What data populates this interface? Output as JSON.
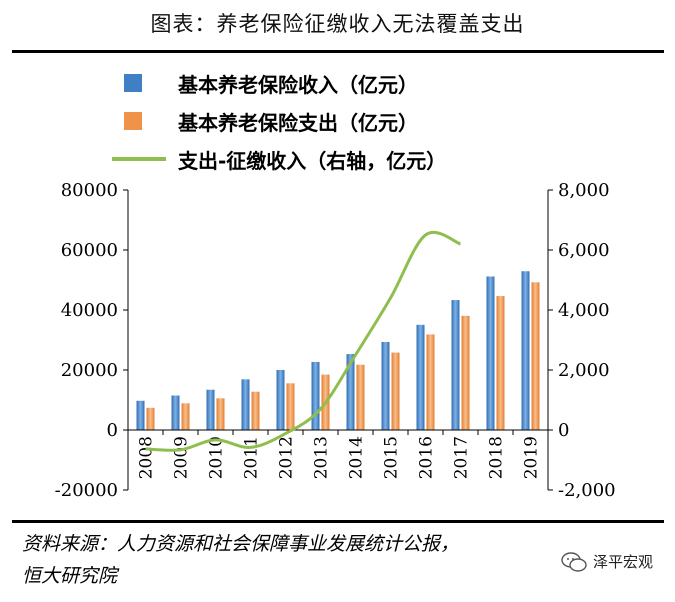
{
  "header": {
    "title": "图表：养老保险征缴收入无法覆盖支出"
  },
  "legend": {
    "income": "基本养老保险收入（亿元）",
    "expense": "基本养老保险支出（亿元）",
    "gap": "支出-征缴收入（右轴，亿元）"
  },
  "source": {
    "line1": "资料来源：人力资源和社会保障事业发展统计公报，",
    "line2": "恒大研究院"
  },
  "watermark": {
    "text": "泽平宏观"
  },
  "colors": {
    "income": "#3f7fc3",
    "expense": "#f0934a",
    "gap": "#8fbe4e"
  },
  "chart_data": {
    "type": "bar",
    "categories": [
      "2008",
      "2009",
      "2010",
      "2011",
      "2012",
      "2013",
      "2014",
      "2015",
      "2016",
      "2017",
      "2018",
      "2019"
    ],
    "series": [
      {
        "name": "基本养老保险收入（亿元）",
        "axis": "left",
        "values": [
          9740,
          11491,
          13420,
          16895,
          20001,
          22680,
          25310,
          29341,
          35058,
          43310,
          51168,
          52919
        ]
      },
      {
        "name": "基本养老保险支出（亿元）",
        "axis": "left",
        "values": [
          7390,
          8894,
          10555,
          12765,
          15562,
          18470,
          21755,
          25813,
          31854,
          38052,
          44645,
          49228
        ]
      },
      {
        "name": "支出-征缴收入（右轴，亿元）",
        "axis": "right",
        "type": "line",
        "x": [
          "2008",
          "2009",
          "2010",
          "2011",
          "2012",
          "2013",
          "2014",
          "2015",
          "2016",
          "2017"
        ],
        "values": [
          -630,
          -660,
          -330,
          -580,
          -120,
          700,
          2500,
          4400,
          6500,
          6200
        ]
      }
    ],
    "left_axis": {
      "ylim": [
        -20000,
        80000
      ],
      "ticks": [
        "-20000",
        "0",
        "20000",
        "40000",
        "60000",
        "80000"
      ]
    },
    "right_axis": {
      "ylim": [
        -2000,
        8000
      ],
      "ticks": [
        "-2,000",
        "0",
        "2,000",
        "4,000",
        "6,000",
        "8,000"
      ]
    },
    "legend_position": "top-left"
  }
}
